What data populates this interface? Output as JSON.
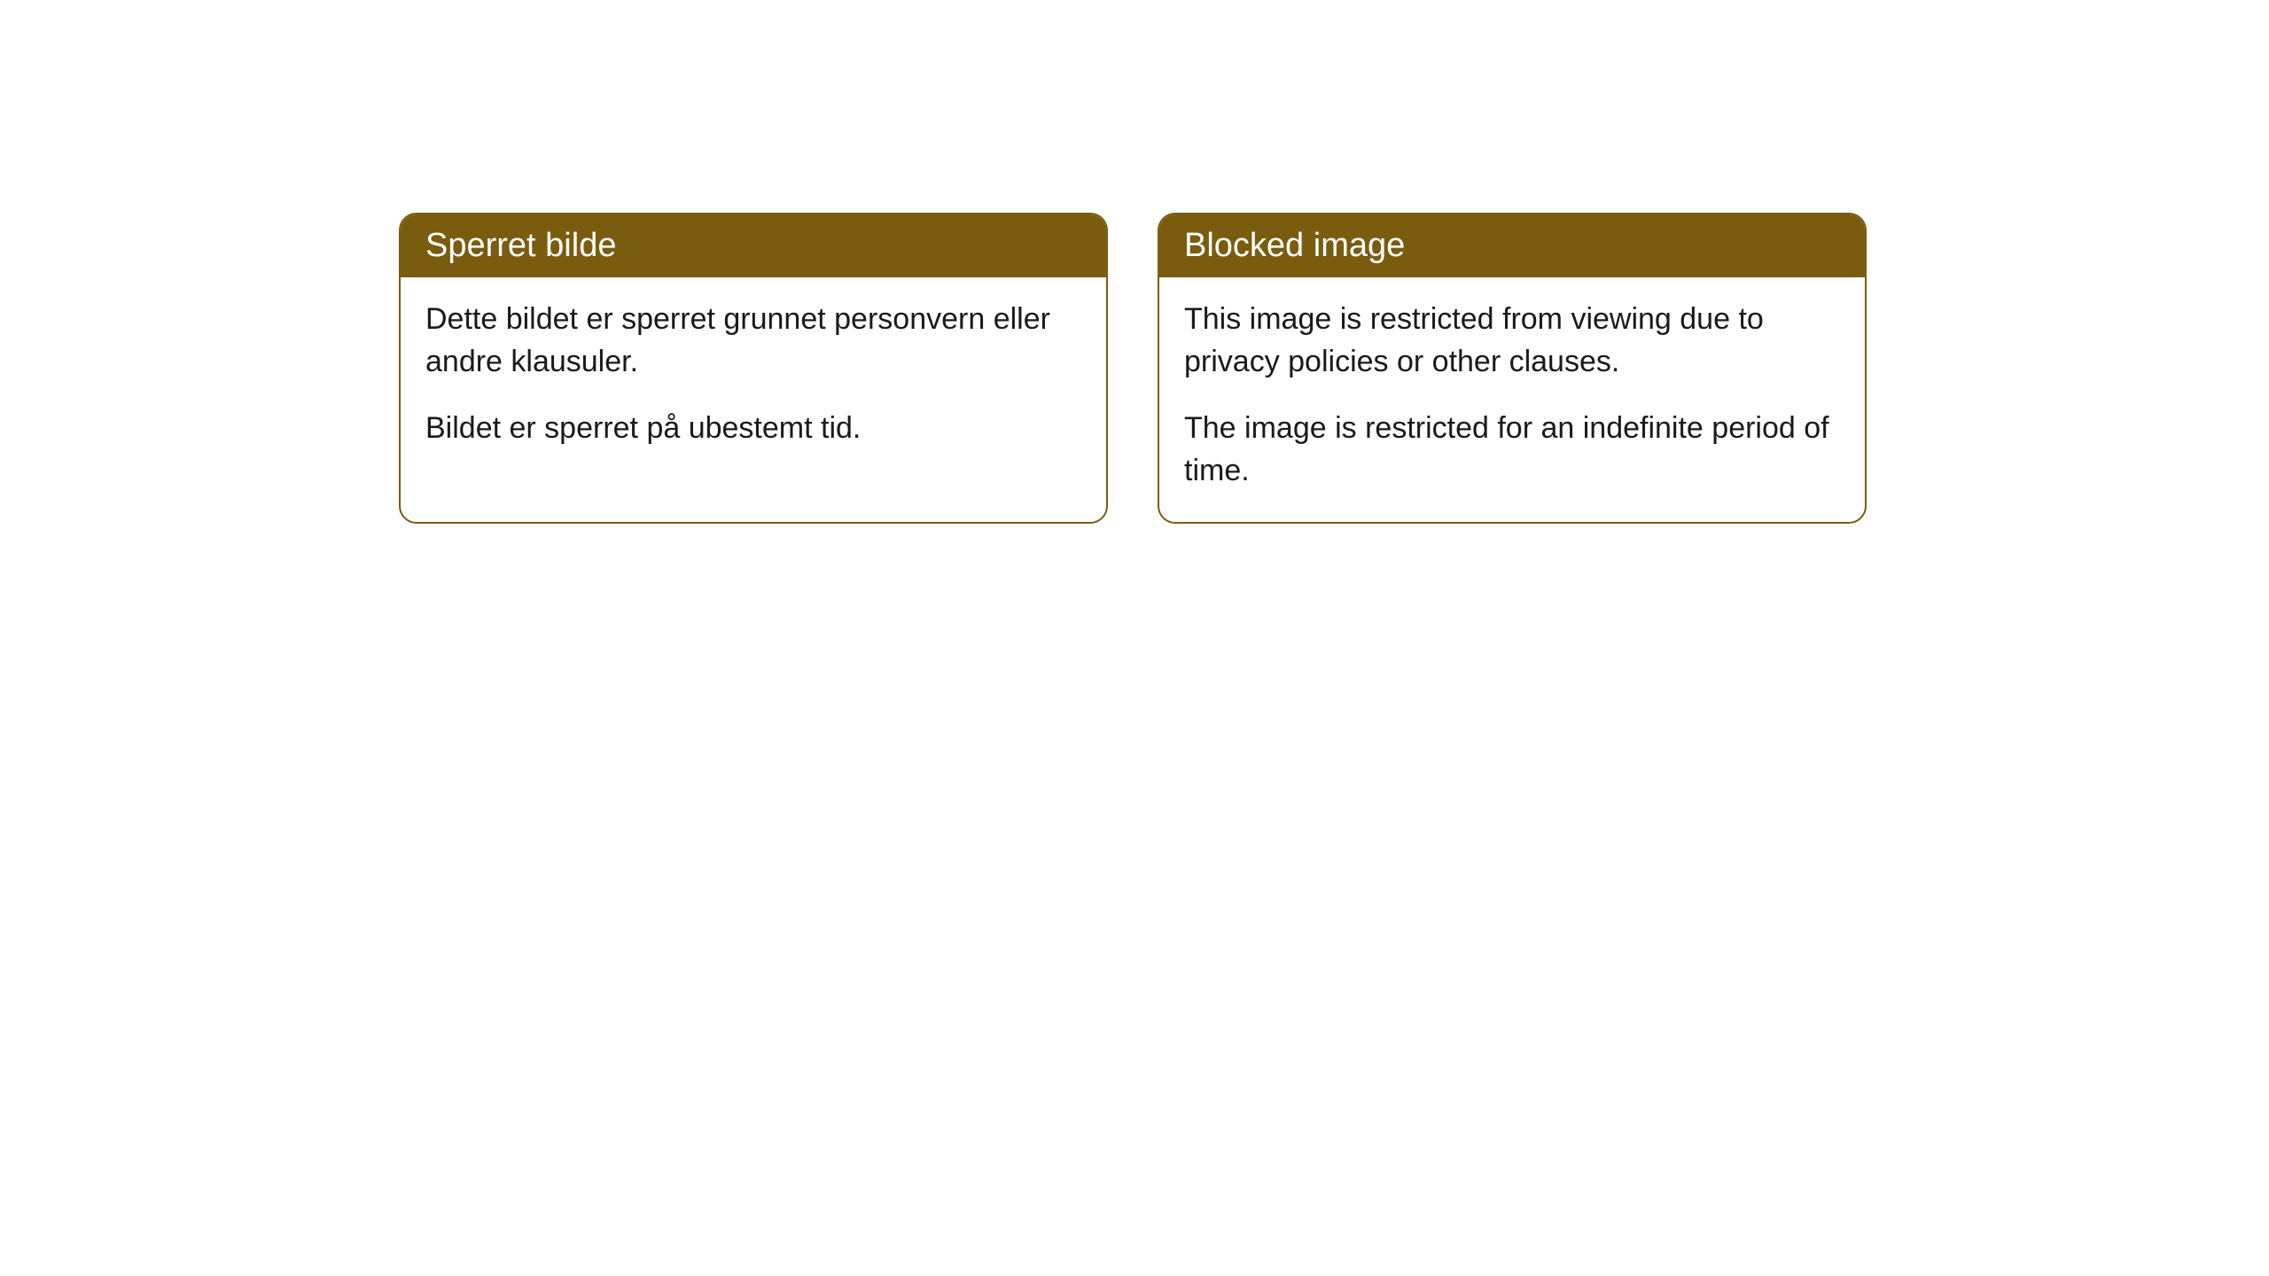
{
  "cards": [
    {
      "title": "Sperret bilde",
      "paragraph1": "Dette bildet er sperret grunnet personvern eller andre klausuler.",
      "paragraph2": "Bildet er sperret på ubestemt tid."
    },
    {
      "title": "Blocked image",
      "paragraph1": "This image is restricted from viewing due to privacy policies or other clauses.",
      "paragraph2": "The image is restricted for an indefinite period of time."
    }
  ],
  "style": {
    "header_background": "#7a5c0f",
    "header_text_color": "#ffffff",
    "body_background": "#ffffff",
    "body_text_color": "#1a1a1a",
    "border_color": "#7a5c0f",
    "border_radius": "20px",
    "title_fontsize": 38,
    "body_fontsize": 34
  }
}
